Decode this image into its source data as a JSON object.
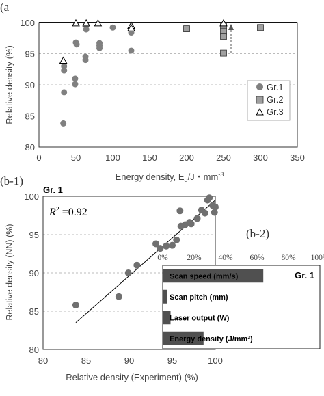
{
  "chart_data": [
    {
      "panel_label": "(a",
      "type": "scatter",
      "xlabel": "Energy density, E",
      "xlabel_sub": "d",
      "xlabel_unit": "/J・mm",
      "xlabel_exp": "-3",
      "ylabel": "Relative density (%)",
      "xlim": [
        0,
        350
      ],
      "ylim": [
        80,
        100
      ],
      "xticks": [
        0,
        50,
        100,
        150,
        200,
        250,
        300,
        350
      ],
      "yticks": [
        80,
        85,
        90,
        95,
        100
      ],
      "grid": "horizontal dashed",
      "legend_position": "right",
      "series": [
        {
          "name": "Gr.1",
          "marker": "circle",
          "color": "#808080",
          "points": [
            [
              33,
              83.8
            ],
            [
              34,
              88.8
            ],
            [
              34,
              92.3
            ],
            [
              34,
              93
            ],
            [
              49,
              90.1
            ],
            [
              49,
              91
            ],
            [
              50,
              96.8
            ],
            [
              51,
              96.5
            ],
            [
              63,
              94
            ],
            [
              63,
              94.5
            ],
            [
              64,
              98.9
            ],
            [
              64,
              99.5
            ],
            [
              82,
              95.9
            ],
            [
              82,
              96.3
            ],
            [
              82,
              96.7
            ],
            [
              100,
              99.2
            ],
            [
              125,
              98.4
            ],
            [
              125,
              95.5
            ]
          ]
        },
        {
          "name": "Gr.2",
          "marker": "square",
          "color": "#a0a0a0",
          "points": [
            [
              200,
              99
            ],
            [
              250,
              99.5
            ],
            [
              250,
              98.6
            ],
            [
              250,
              97.8
            ],
            [
              250,
              95.1
            ],
            [
              300,
              99.2
            ]
          ]
        },
        {
          "name": "Gr.3",
          "marker": "triangle",
          "color": "#000000",
          "points": [
            [
              33,
              93.9
            ],
            [
              50,
              99.9
            ],
            [
              64,
              99.9
            ],
            [
              80,
              99.9
            ],
            [
              125,
              99.5
            ],
            [
              125,
              99.1
            ],
            [
              250,
              99.9
            ]
          ]
        }
      ],
      "annotation": "dashed arrow at Ed = 250 from 95 to 99.8"
    },
    {
      "panel_label": "(b-1)",
      "type": "scatter",
      "group_label": "Gr. 1",
      "r2_symbol": "R",
      "r2_exp": "2",
      "r2_value": " =0.92",
      "xlabel": "Relative density (Experiment) (%)",
      "ylabel": "Relative density (NN) (%)",
      "xlim": [
        80,
        100
      ],
      "ylim": [
        80,
        100
      ],
      "xticks": [
        80,
        85,
        90,
        95,
        100
      ],
      "yticks": [
        80,
        85,
        90,
        95,
        100
      ],
      "grid": "horizontal dashed",
      "color": "#707070",
      "points": [
        [
          83.8,
          85.8
        ],
        [
          88.8,
          86.9
        ],
        [
          89.9,
          90
        ],
        [
          90.9,
          91
        ],
        [
          93.1,
          93.8
        ],
        [
          93.6,
          93.2
        ],
        [
          94.3,
          93.5
        ],
        [
          95,
          93.6
        ],
        [
          95.5,
          94.3
        ],
        [
          95.9,
          98.1
        ],
        [
          96,
          96.1
        ],
        [
          96.5,
          96.3
        ],
        [
          97,
          96.6
        ],
        [
          97.2,
          96.4
        ],
        [
          97.9,
          97.1
        ],
        [
          98.4,
          98.2
        ],
        [
          98.8,
          97.8
        ],
        [
          99.1,
          99.5
        ],
        [
          99.3,
          99.8
        ],
        [
          99.7,
          98.8
        ],
        [
          99.9,
          97.9
        ],
        [
          100,
          98.6
        ]
      ],
      "fit_line": [
        [
          83.8,
          83.5
        ],
        [
          100,
          99.5
        ]
      ]
    },
    {
      "panel_label": "(b-2)",
      "type": "bar",
      "orientation": "horizontal",
      "group_label": "Gr. 1",
      "xlim": [
        0,
        100
      ],
      "xticks": [
        "0%",
        "20%",
        "40%",
        "60%",
        "80%",
        "100%"
      ],
      "color": "#505050",
      "categories": [
        "Scan speed (mm/s)",
        "Scan pitch (mm)",
        "Laser output (W)",
        "Energy density (J/mm³)"
      ],
      "values": [
        64,
        3,
        5,
        26
      ]
    }
  ]
}
